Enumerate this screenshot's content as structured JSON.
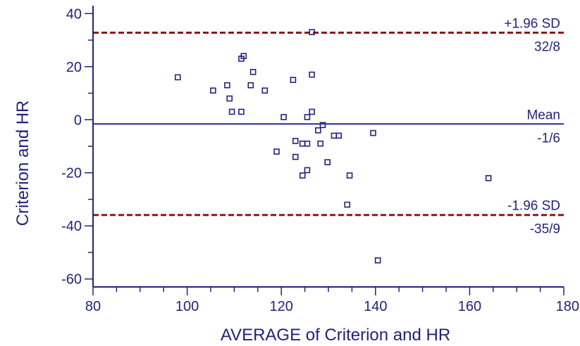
{
  "chart_data": {
    "type": "scatter",
    "title": "",
    "xlabel": "AVERAGE of Criterion and HR",
    "ylabel": "Criterion and HR",
    "xlim": [
      80,
      180
    ],
    "ylim": [
      -63,
      43
    ],
    "x_ticks": [
      80,
      100,
      120,
      140,
      160,
      180
    ],
    "y_ticks": [
      -60,
      -40,
      -20,
      0,
      20,
      40
    ],
    "grid": false,
    "legend": "none",
    "colors": {
      "axis": "#23237a",
      "points": "#23237a",
      "mean_line": "#2a2a8c",
      "sd_lines": "#8b1a1a",
      "text": "#23237a"
    },
    "points": [
      {
        "x": 98,
        "y": 16
      },
      {
        "x": 105.5,
        "y": 11
      },
      {
        "x": 108.5,
        "y": 13
      },
      {
        "x": 109,
        "y": 8
      },
      {
        "x": 109.5,
        "y": 3
      },
      {
        "x": 111.5,
        "y": 23
      },
      {
        "x": 111.5,
        "y": 3
      },
      {
        "x": 112,
        "y": 24
      },
      {
        "x": 113.5,
        "y": 13
      },
      {
        "x": 114,
        "y": 18
      },
      {
        "x": 116.5,
        "y": 11
      },
      {
        "x": 119,
        "y": -12
      },
      {
        "x": 120.5,
        "y": 1
      },
      {
        "x": 122.5,
        "y": 15
      },
      {
        "x": 123,
        "y": -8
      },
      {
        "x": 123,
        "y": -14
      },
      {
        "x": 124.5,
        "y": -9
      },
      {
        "x": 124.5,
        "y": -21
      },
      {
        "x": 125.5,
        "y": -9
      },
      {
        "x": 125.5,
        "y": -19
      },
      {
        "x": 125.5,
        "y": 1
      },
      {
        "x": 126.5,
        "y": 33
      },
      {
        "x": 126.5,
        "y": 17
      },
      {
        "x": 126.5,
        "y": 3
      },
      {
        "x": 127.8,
        "y": -4
      },
      {
        "x": 128.3,
        "y": -9
      },
      {
        "x": 128.8,
        "y": -2
      },
      {
        "x": 129.8,
        "y": -16
      },
      {
        "x": 131.2,
        "y": -6
      },
      {
        "x": 132.2,
        "y": -6
      },
      {
        "x": 134,
        "y": -32
      },
      {
        "x": 134.5,
        "y": -21
      },
      {
        "x": 139.5,
        "y": -5
      },
      {
        "x": 140.5,
        "y": -53
      },
      {
        "x": 164,
        "y": -22
      }
    ],
    "reference_lines": [
      {
        "label": "+1.96 SD",
        "value_label": "32/8",
        "y": 32.8,
        "style": "dashed"
      },
      {
        "label": "Mean",
        "value_label": "-1/6",
        "y": -1.6,
        "style": "solid"
      },
      {
        "label": "-1.96 SD",
        "value_label": "-35/9",
        "y": -35.9,
        "style": "dashed"
      }
    ]
  }
}
